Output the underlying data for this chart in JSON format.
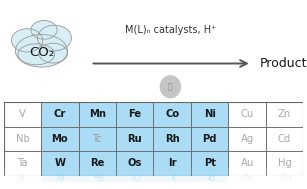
{
  "title_text": "M(L)ₙ catalysts, H⁺",
  "arrow_label": "Products",
  "co2_label": "CO₂",
  "bg_color": "#ffffff",
  "highlight_color": "#aadcf5",
  "dim_color": "#aaaaaa",
  "dark_color": "#1a1a1a",
  "grid_color": "#666666",
  "rows": [
    [
      "V",
      "Cr",
      "Mn",
      "Fe",
      "Co",
      "Ni",
      "Cu",
      "Zn"
    ],
    [
      "Nb",
      "Mo",
      "Tc",
      "Ru",
      "Rh",
      "Pd",
      "Ag",
      "Cd"
    ],
    [
      "Ta",
      "W",
      "Re",
      "Os",
      "Ir",
      "Pt",
      "Au",
      "Hg"
    ]
  ],
  "highlighted": [
    [
      false,
      true,
      true,
      true,
      true,
      true,
      false,
      false
    ],
    [
      false,
      true,
      true,
      true,
      true,
      true,
      false,
      false
    ],
    [
      false,
      true,
      true,
      true,
      true,
      true,
      false,
      false
    ]
  ],
  "tc_gray": true,
  "cloud_color": "#d5edf5",
  "cloud_edge_color": "#999999",
  "plug_color": "#bbbbbb",
  "arrow_color": "#555555",
  "text_color": "#333333",
  "reflect_rows": [
    "Ta",
    "W",
    "Re",
    "Os",
    "Ir",
    "Pt",
    "Au",
    "Hg"
  ],
  "reflect_hl": [
    false,
    true,
    true,
    true,
    true,
    true,
    false,
    false
  ],
  "figw": 3.07,
  "figh": 1.89
}
